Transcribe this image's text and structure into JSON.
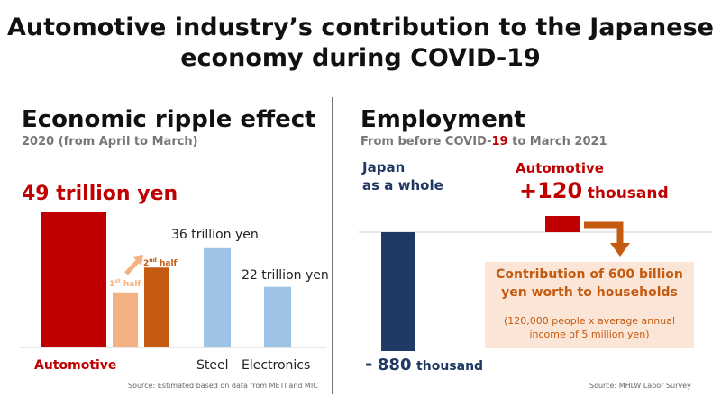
{
  "title_line1": "Automotive industry’s contribution to the Japanese",
  "title_line2": "economy during COVID-19",
  "left": {
    "heading": "Economic ripple effect",
    "subtitle": "2020 (from April to March)",
    "auto_value_label": "49 trillion yen",
    "first_half_base": "1",
    "first_half_sup": "st",
    "first_half_word": "half",
    "second_half_base": "2",
    "second_half_sup": "nd",
    "second_half_word": "half",
    "steel_value_label": "36 trillion yen",
    "electronics_value_label": "22 trillion yen",
    "source": "Source: Estimated based on data from METI and MIC"
  },
  "right": {
    "heading": "Employment",
    "subtitle_pre": "From before COVID-",
    "subtitle_hl": "19",
    "subtitle_post": " to March 2021",
    "japan_label_1": "Japan",
    "japan_label_2": "as a whole",
    "japan_value_sign": "-",
    "japan_value_num": "880",
    "japan_value_unit": "thousand",
    "auto_label": "Automotive",
    "auto_value_num": "+120",
    "auto_value_unit": "thousand",
    "callout_line1": "Contribution of 600 billion",
    "callout_line2": "yen worth to households",
    "callout_sub1": "(120,000 people x average annual",
    "callout_sub2": "income of 5 million yen)",
    "source": "Source: MHLW Labor Survey"
  },
  "colors": {
    "automotive": "#c00000",
    "first_half": "#f4b183",
    "second_half": "#c55a11",
    "steel_electronics": "#9dc3e6",
    "japan": "#1f3864",
    "arrow": "#c55a11",
    "callout_bg": "#fbe5d6"
  },
  "chart_data": [
    {
      "type": "bar",
      "unit": "trillion yen",
      "categories": [
        "Automotive",
        "Steel",
        "Electronics"
      ],
      "values": [
        49,
        36,
        22
      ],
      "breakdown_automotive": [
        {
          "name": "1st half",
          "value": 20
        },
        {
          "name": "2nd half",
          "value": 29
        }
      ]
    },
    {
      "type": "bar",
      "unit": "thousand",
      "categories": [
        "Japan as a whole",
        "Automotive"
      ],
      "values": [
        -880,
        120
      ]
    }
  ]
}
